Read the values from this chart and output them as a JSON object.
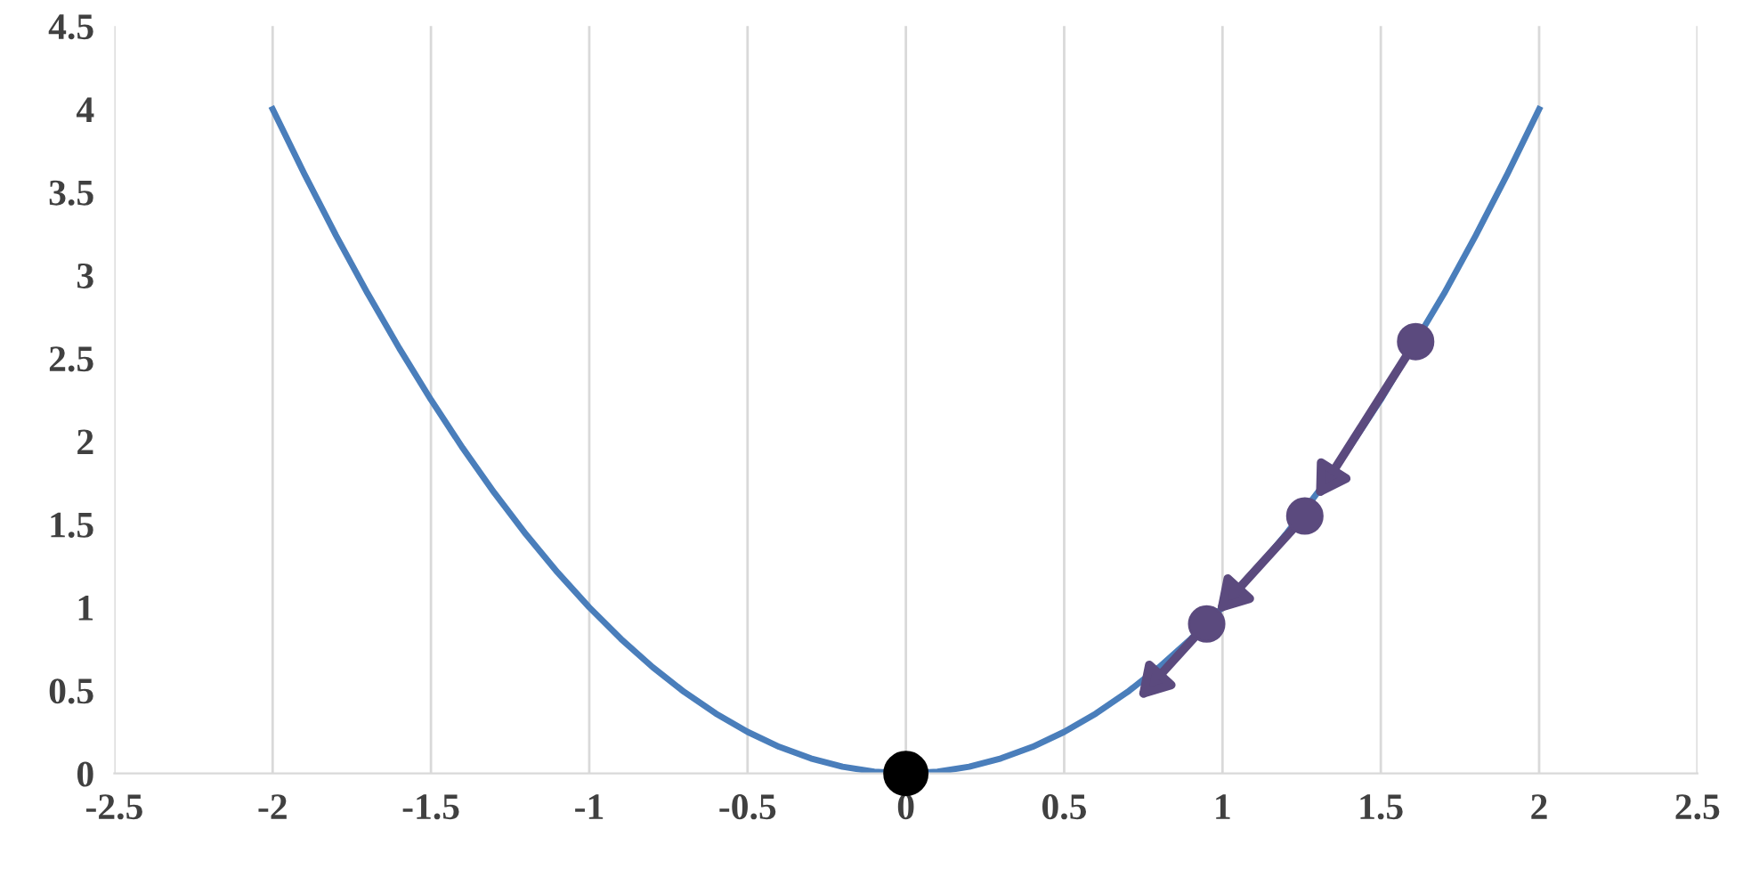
{
  "chart_data": {
    "type": "line",
    "xlim": [
      -2.5,
      2.5
    ],
    "ylim": [
      0,
      4.5
    ],
    "xticks": [
      -2.5,
      -2,
      -1.5,
      -1,
      -0.5,
      0,
      0.5,
      1,
      1.5,
      2,
      2.5
    ],
    "yticks": [
      0,
      0.5,
      1,
      1.5,
      2,
      2.5,
      3,
      3.5,
      4,
      4.5
    ],
    "grid": "x",
    "line_style": "solid",
    "series": [
      {
        "color": "#4a7ebb",
        "x": [
          -2,
          -1.9,
          -1.8,
          -1.7,
          -1.6,
          -1.5,
          -1.4,
          -1.3,
          -1.2,
          -1.1,
          -1,
          -0.9,
          -0.8,
          -0.7,
          -0.6,
          -0.5,
          -0.4,
          -0.3,
          -0.2,
          -0.1,
          0,
          0.1,
          0.2,
          0.3,
          0.4,
          0.5,
          0.6,
          0.7,
          0.8,
          0.9,
          1,
          1.1,
          1.2,
          1.3,
          1.4,
          1.5,
          1.7,
          1.8,
          1.9,
          2
        ],
        "values": [
          4,
          3.61,
          3.24,
          2.89,
          2.56,
          2.25,
          1.96,
          1.69,
          1.44,
          1.21,
          1,
          0.81,
          0.64,
          0.49,
          0.36,
          0.25,
          0.16,
          0.09,
          0.04,
          0.01,
          0,
          0.01,
          0.04,
          0.09,
          0.16,
          0.25,
          0.36,
          0.49,
          0.64,
          0.81,
          1,
          1.21,
          1.44,
          1.69,
          1.96,
          2.25,
          2.89,
          3.24,
          3.61,
          4
        ]
      },
      {
        "type": "scatter",
        "color": "#5b4a7e",
        "x": [
          1.61,
          1.26,
          0.95
        ],
        "values": [
          2.6,
          1.55,
          0.9
        ]
      },
      {
        "type": "scatter",
        "color": "#000000",
        "x": [
          0
        ],
        "values": [
          0
        ]
      }
    ]
  }
}
